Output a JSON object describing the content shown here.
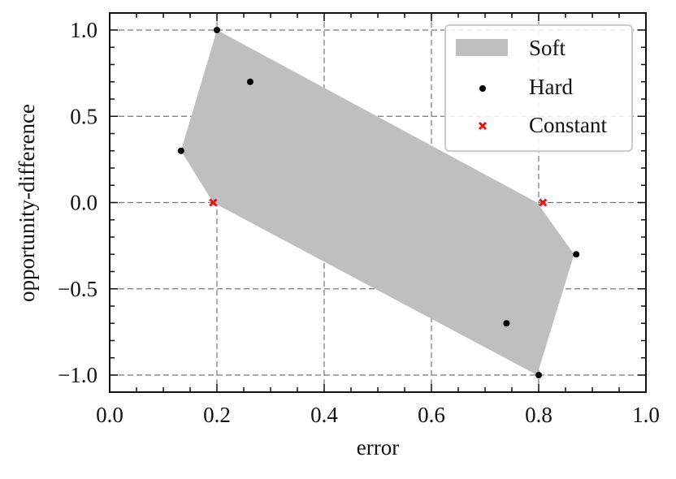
{
  "chart_data": {
    "type": "scatter",
    "title": "",
    "xlabel": "error",
    "ylabel": "opportunity-difference",
    "xlim": [
      0.0,
      1.0
    ],
    "ylim": [
      -1.1,
      1.1
    ],
    "xticks": [
      "0.0",
      "0.2",
      "0.4",
      "0.6",
      "0.8",
      "1.0"
    ],
    "yticks": [
      "1.0",
      "0.5",
      "0.0",
      "−0.5",
      "−1.0"
    ],
    "grid": true,
    "legend_position": "upper right",
    "series": [
      {
        "name": "Soft",
        "kind": "polygon",
        "color": "#bfbfbf",
        "points": [
          [
            0.2,
            1.0
          ],
          [
            0.797,
            0.0
          ],
          [
            0.866,
            -0.3
          ],
          [
            0.797,
            -1.0
          ],
          [
            0.193,
            0.0
          ],
          [
            0.133,
            0.3
          ]
        ]
      },
      {
        "name": "Hard",
        "kind": "scatter",
        "marker": "dot",
        "color": "#000000",
        "points": [
          [
            0.2,
            1.0
          ],
          [
            0.262,
            0.7
          ],
          [
            0.133,
            0.3
          ],
          [
            0.87,
            -0.3
          ],
          [
            0.74,
            -0.7
          ],
          [
            0.8,
            -1.0
          ]
        ]
      },
      {
        "name": "Constant",
        "kind": "scatter",
        "marker": "x",
        "color": "#ee1111",
        "points": [
          [
            0.193,
            0.0
          ],
          [
            0.808,
            0.0
          ]
        ]
      }
    ]
  },
  "legend": {
    "soft": "Soft",
    "hard": "Hard",
    "constant": "Constant"
  },
  "axes": {
    "xlabel": "error",
    "ylabel": "opportunity-difference"
  }
}
